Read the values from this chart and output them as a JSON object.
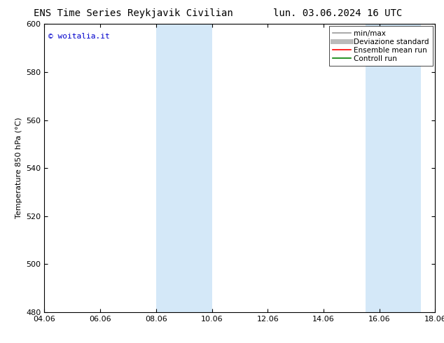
{
  "title_left": "ENS Time Series Reykjavik Civilian",
  "title_right": "lun. 03.06.2024 16 UTC",
  "ylabel": "Temperature 850 hPa (°C)",
  "ylim": [
    480,
    600
  ],
  "yticks": [
    480,
    500,
    520,
    540,
    560,
    580,
    600
  ],
  "xtick_labels": [
    "04.06",
    "06.06",
    "08.06",
    "10.06",
    "12.06",
    "14.06",
    "16.06",
    "18.06"
  ],
  "xtick_positions": [
    0,
    2,
    4,
    6,
    8,
    10,
    12,
    14
  ],
  "xlim": [
    0,
    14
  ],
  "shaded_bands": [
    {
      "x_start": 4.0,
      "x_end": 6.0
    },
    {
      "x_start": 11.5,
      "x_end": 13.5
    }
  ],
  "shaded_color": "#d4e8f8",
  "watermark_text": "© woitalia.it",
  "watermark_color": "#0000cc",
  "background_color": "#ffffff",
  "legend_items": [
    {
      "label": "min/max",
      "color": "#999999",
      "lw": 1.2
    },
    {
      "label": "Deviazione standard",
      "color": "#bbbbbb",
      "lw": 5
    },
    {
      "label": "Ensemble mean run",
      "color": "#ff0000",
      "lw": 1.2
    },
    {
      "label": "Controll run",
      "color": "#008000",
      "lw": 1.2
    }
  ],
  "title_fontsize": 10,
  "tick_fontsize": 8,
  "ylabel_fontsize": 8,
  "legend_fontsize": 7.5,
  "watermark_fontsize": 8
}
